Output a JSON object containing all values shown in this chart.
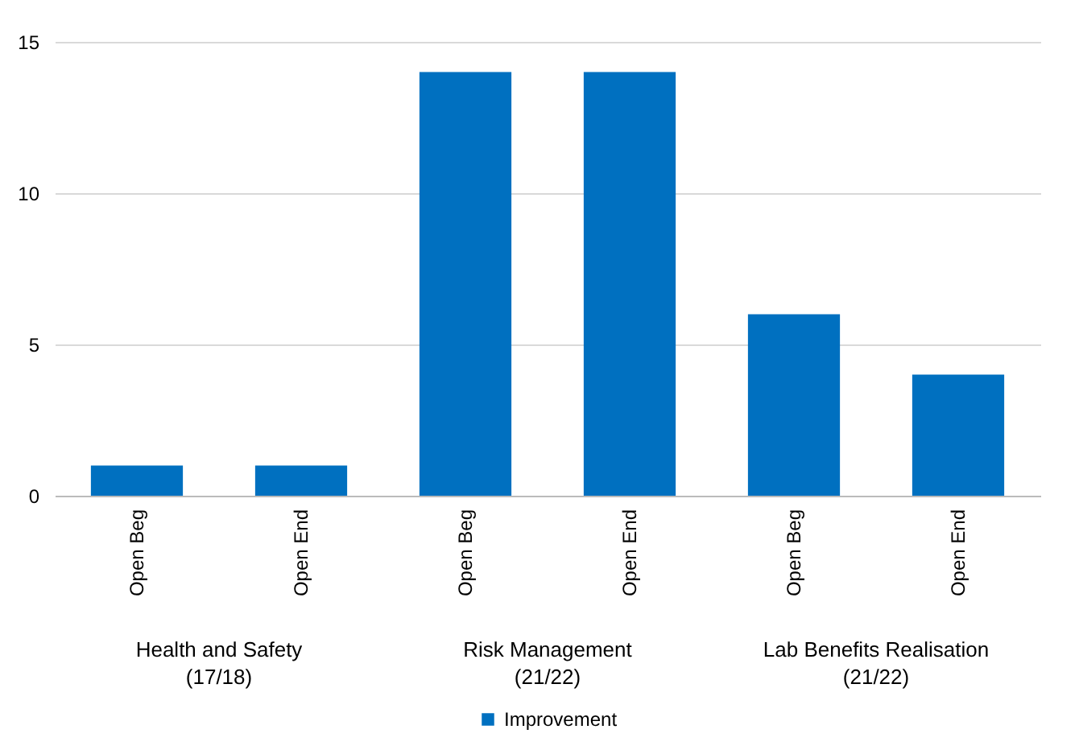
{
  "chart_data": {
    "type": "bar",
    "categories": [
      "Open Beg",
      "Open End",
      "Open Beg",
      "Open End",
      "Open Beg",
      "Open End"
    ],
    "series": [
      {
        "name": "Improvement",
        "color": "#0070c0",
        "values": [
          1,
          1,
          14,
          14,
          6,
          4
        ]
      }
    ],
    "ylim": [
      0,
      15
    ],
    "yticks": [
      0,
      5,
      10,
      15
    ],
    "grid": "y",
    "legend": "bottom",
    "annotations": [
      "Health and Safety\n(17/18)",
      "Risk Management\n(21/22)",
      "Lab Benefits Realisation\n(21/22)"
    ]
  }
}
